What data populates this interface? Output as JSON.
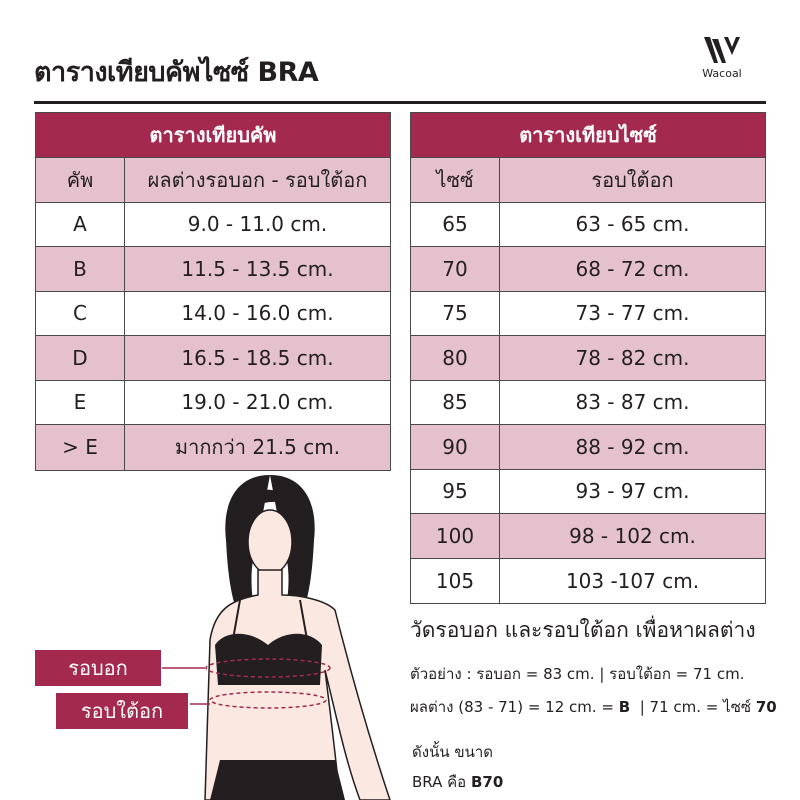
{
  "header": {
    "title": "ตารางเทียบคัพไซซ์ BRA",
    "brand": "Wacoal"
  },
  "cup_table": {
    "title": "ตารางเทียบคัพ",
    "col_cup": "คัพ",
    "col_diff": "ผลต่างรอบอก - รอบใต้อก",
    "rows": [
      {
        "cup": "A",
        "range": "9.0 - 11.0 cm."
      },
      {
        "cup": "B",
        "range": "11.5 - 13.5 cm."
      },
      {
        "cup": "C",
        "range": "14.0 - 16.0 cm."
      },
      {
        "cup": "D",
        "range": "16.5 - 18.5 cm."
      },
      {
        "cup": "E",
        "range": "19.0 - 21.0 cm."
      },
      {
        "cup": "> E",
        "range": "มากกว่า 21.5 cm."
      }
    ]
  },
  "size_table": {
    "title": "ตารางเทียบไซซ์",
    "col_size": "ไซซ์",
    "col_under": "รอบใต้อก",
    "rows": [
      {
        "size": "65",
        "range": "63 - 65 cm."
      },
      {
        "size": "70",
        "range": "68 - 72 cm."
      },
      {
        "size": "75",
        "range": "73 - 77 cm."
      },
      {
        "size": "80",
        "range": "78 - 82 cm."
      },
      {
        "size": "85",
        "range": "83 - 87 cm."
      },
      {
        "size": "90",
        "range": "88 - 92 cm."
      },
      {
        "size": "95",
        "range": "93 - 97 cm."
      },
      {
        "size": "100",
        "range": "98 - 102 cm."
      },
      {
        "size": "105",
        "range": "103 -107 cm."
      }
    ]
  },
  "figure": {
    "bust_label": "รอบอก",
    "underbust_label": "รอบใต้อก"
  },
  "notes": {
    "heading": "วัดรอบอก และรอบใต้อก เพื่อหาผลต่าง",
    "example": "ตัวอย่าง :  รอบอก = 83 cm. | รอบใต้อก = 71 cm.",
    "calc_a": "ผลต่าง (83 - 71) = 12 cm. = ",
    "calc_b": "B",
    "calc_c": "  | 71 cm. = ไซซ์ ",
    "calc_d": "70",
    "result_1": "ดังนั้น ขนาด",
    "result_2a": "BRA คือ ",
    "result_2b": "B70"
  },
  "colors": {
    "header": "#a3294f",
    "pink_row": "#e4c1cc"
  }
}
